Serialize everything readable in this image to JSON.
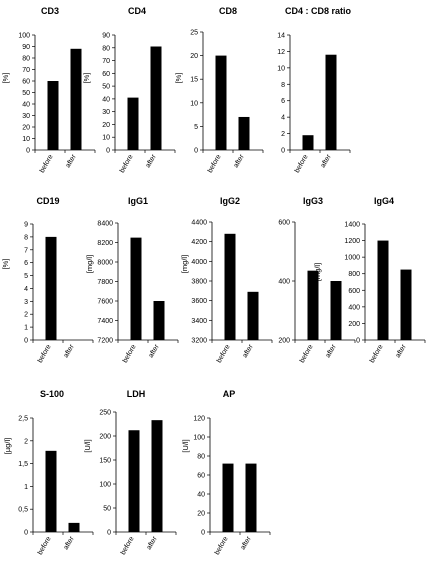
{
  "chart_data": [
    {
      "type": "bar",
      "title": "CD3",
      "ylabel": "[%]",
      "categories": [
        "before",
        "after"
      ],
      "values": [
        60,
        88
      ],
      "ylim": [
        0,
        100
      ],
      "yticks": [
        0,
        10,
        20,
        30,
        40,
        50,
        60,
        70,
        80,
        90,
        100
      ],
      "ytick_labels": [
        "0",
        "10",
        "20",
        "30",
        "40",
        "50",
        "60",
        "70",
        "80",
        "90",
        "100"
      ]
    },
    {
      "type": "bar",
      "title": "CD4",
      "ylabel": "[%]",
      "categories": [
        "before",
        "after"
      ],
      "values": [
        41,
        81
      ],
      "ylim": [
        0,
        90
      ],
      "yticks": [
        0,
        10,
        20,
        30,
        40,
        50,
        60,
        70,
        80,
        90
      ],
      "ytick_labels": [
        "0",
        "10",
        "20",
        "30",
        "40",
        "50",
        "60",
        "70",
        "80",
        "90"
      ]
    },
    {
      "type": "bar",
      "title": "CD8",
      "ylabel": "[%]",
      "categories": [
        "before",
        "after"
      ],
      "values": [
        20,
        7
      ],
      "ylim": [
        0,
        25
      ],
      "yticks": [
        0,
        5,
        10,
        15,
        20,
        25
      ],
      "ytick_labels": [
        "0",
        "5",
        "10",
        "15",
        "20",
        "25"
      ]
    },
    {
      "type": "bar",
      "title": "CD4 : CD8 ratio",
      "ylabel": "",
      "categories": [
        "before",
        "after"
      ],
      "values": [
        1.8,
        11.6
      ],
      "ylim": [
        0,
        14
      ],
      "yticks": [
        0,
        2,
        4,
        6,
        8,
        10,
        12,
        14
      ],
      "ytick_labels": [
        "0",
        "2",
        "4",
        "6",
        "8",
        "10",
        "12",
        "14"
      ]
    },
    {
      "type": "bar",
      "title": "CD19",
      "ylabel": "[%]",
      "categories": [
        "before",
        "after"
      ],
      "values": [
        8,
        0
      ],
      "ylim": [
        0,
        9
      ],
      "yticks": [
        0,
        1,
        2,
        3,
        4,
        5,
        6,
        7,
        8,
        9
      ],
      "ytick_labels": [
        "0",
        "1",
        "2",
        "3",
        "4",
        "5",
        "6",
        "7",
        "8",
        "9"
      ]
    },
    {
      "type": "bar",
      "title": "IgG1",
      "ylabel": "[mg/l]",
      "categories": [
        "before",
        "after"
      ],
      "values": [
        8250,
        7600
      ],
      "ylim": [
        7200,
        8400
      ],
      "yticks": [
        7200,
        7400,
        7600,
        7800,
        8000,
        8200,
        8400
      ],
      "ytick_labels": [
        "7200",
        "7400",
        "7600",
        "7800",
        "8000",
        "8200",
        "8400"
      ]
    },
    {
      "type": "bar",
      "title": "IgG2",
      "ylabel": "[mg/l]",
      "categories": [
        "before",
        "after"
      ],
      "values": [
        4280,
        3690
      ],
      "ylim": [
        3200,
        4400
      ],
      "yticks": [
        3200,
        3400,
        3600,
        3800,
        4000,
        4200,
        4400
      ],
      "ytick_labels": [
        "3200",
        "3400",
        "3600",
        "3800",
        "4000",
        "4200",
        "4400"
      ]
    },
    {
      "type": "bar",
      "title": "IgG3",
      "ylabel": "[mg/l]",
      "categories": [
        "before",
        "after"
      ],
      "values": [
        435,
        400
      ],
      "ylim": [
        200,
        600
      ],
      "yticks": [
        200,
        400,
        600
      ],
      "ytick_labels": [
        "200",
        "400",
        "600"
      ]
    },
    {
      "type": "bar",
      "title": "IgG4",
      "ylabel": "",
      "categories": [
        "before",
        "after"
      ],
      "values": [
        1200,
        850
      ],
      "ylim": [
        0,
        1400
      ],
      "yticks": [
        0,
        200,
        400,
        600,
        800,
        1000,
        1200,
        1400
      ],
      "ytick_labels": [
        "0",
        "200",
        "400",
        "600",
        "800",
        "1000",
        "1200",
        "1400"
      ]
    },
    {
      "type": "bar",
      "title": "S-100",
      "ylabel": "[µg/l]",
      "categories": [
        "before",
        "after"
      ],
      "values": [
        1.78,
        0.2
      ],
      "ylim": [
        0,
        2.5
      ],
      "yticks": [
        0,
        0.5,
        1,
        1.5,
        2,
        2.5
      ],
      "ytick_labels": [
        "0",
        "0,5",
        "1",
        "1,5",
        "2",
        "2,5"
      ]
    },
    {
      "type": "bar",
      "title": "LDH",
      "ylabel": "[U/l]",
      "categories": [
        "before",
        "after"
      ],
      "values": [
        212,
        233
      ],
      "ylim": [
        0,
        250
      ],
      "yticks": [
        0,
        50,
        100,
        150,
        200,
        250
      ],
      "ytick_labels": [
        "0",
        "50",
        "100",
        "150",
        "200",
        "250"
      ]
    },
    {
      "type": "bar",
      "title": "AP",
      "ylabel": "[U/l]",
      "categories": [
        "before",
        "after"
      ],
      "values": [
        72,
        72
      ],
      "ylim": [
        0,
        120
      ],
      "yticks": [
        0,
        20,
        40,
        60,
        80,
        100,
        120
      ],
      "ytick_labels": [
        "0",
        "20",
        "40",
        "60",
        "80",
        "100",
        "120"
      ]
    }
  ]
}
